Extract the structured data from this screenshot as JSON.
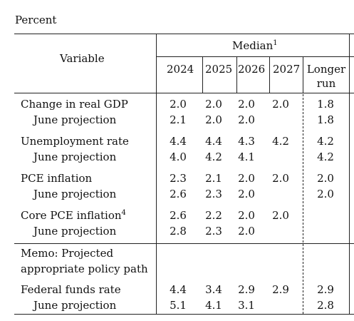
{
  "caption": "Percent",
  "header": {
    "variable": "Variable",
    "median": "Median",
    "median_note": "1",
    "years": [
      "2024",
      "2025",
      "2026",
      "2027"
    ],
    "longer_run_line1": "Longer",
    "longer_run_line2": "run"
  },
  "rows": [
    {
      "label": "Change in real GDP",
      "note": "",
      "values": [
        "2.0",
        "2.0",
        "2.0",
        "2.0",
        "1.8"
      ]
    },
    {
      "label": "June projection",
      "note": "",
      "values": [
        "2.1",
        "2.0",
        "2.0",
        "",
        "1.8"
      ]
    },
    {
      "label": "Unemployment rate",
      "note": "",
      "values": [
        "4.4",
        "4.4",
        "4.3",
        "4.2",
        "4.2"
      ]
    },
    {
      "label": "June projection",
      "note": "",
      "values": [
        "4.0",
        "4.2",
        "4.1",
        "",
        "4.2"
      ]
    },
    {
      "label": "PCE inflation",
      "note": "",
      "values": [
        "2.3",
        "2.1",
        "2.0",
        "2.0",
        "2.0"
      ]
    },
    {
      "label": "June projection",
      "note": "",
      "values": [
        "2.6",
        "2.3",
        "2.0",
        "",
        "2.0"
      ]
    },
    {
      "label": "Core PCE inflation",
      "note": "4",
      "values": [
        "2.6",
        "2.2",
        "2.0",
        "2.0",
        ""
      ]
    },
    {
      "label": "June projection",
      "note": "",
      "values": [
        "2.8",
        "2.3",
        "2.0",
        "",
        ""
      ]
    },
    {
      "label": "Federal funds rate",
      "note": "",
      "values": [
        "4.4",
        "3.4",
        "2.9",
        "2.9",
        "2.9"
      ]
    },
    {
      "label": "June projection",
      "note": "",
      "values": [
        "5.1",
        "4.1",
        "3.1",
        "",
        "2.8"
      ]
    }
  ],
  "memo": {
    "line1": "Memo: Projected",
    "line2": "appropriate policy path"
  }
}
